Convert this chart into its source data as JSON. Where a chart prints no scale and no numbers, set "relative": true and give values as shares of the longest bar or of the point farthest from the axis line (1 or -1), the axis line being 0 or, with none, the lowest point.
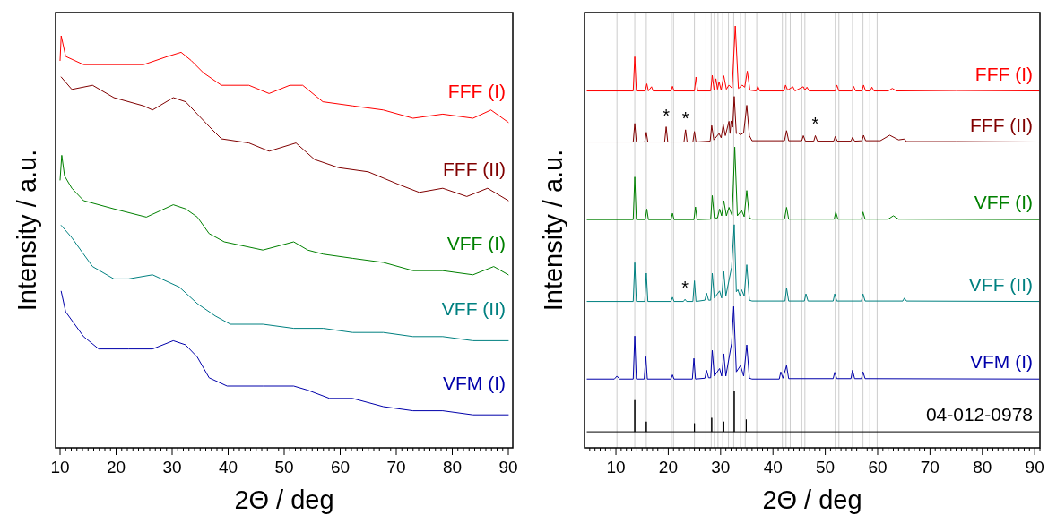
{
  "chart_data": [
    {
      "type": "line",
      "relative": true,
      "xlabel": "2Θ / deg",
      "ylabel": "Intensity / a.u.",
      "xlim": [
        9.2,
        90.8
      ],
      "xticks": [
        10,
        {
          "value": 11,
          "label": null
        },
        {
          "value": 12,
          "label": null
        },
        {
          "value": 13,
          "label": null
        },
        {
          "value": 14,
          "label": null
        },
        {
          "value": 15,
          "label": null
        },
        {
          "value": 16,
          "label": null
        },
        {
          "value": 17,
          "label": null
        },
        {
          "value": 18,
          "label": null
        },
        {
          "value": 19,
          "label": null
        },
        20,
        {
          "value": 21,
          "label": null
        },
        {
          "value": 22,
          "label": null
        },
        {
          "value": 23,
          "label": null
        },
        {
          "value": 24,
          "label": null
        },
        {
          "value": 25,
          "label": null
        },
        {
          "value": 26,
          "label": null
        },
        {
          "value": 27,
          "label": null
        },
        {
          "value": 28,
          "label": null
        },
        {
          "value": 29,
          "label": null
        },
        30,
        {
          "value": 31,
          "label": null
        },
        {
          "value": 32,
          "label": null
        },
        {
          "value": 33,
          "label": null
        },
        {
          "value": 34,
          "label": null
        },
        {
          "value": 35,
          "label": null
        },
        {
          "value": 36,
          "label": null
        },
        {
          "value": 37,
          "label": null
        },
        {
          "value": 38,
          "label": null
        },
        {
          "value": 39,
          "label": null
        },
        40,
        {
          "value": 41,
          "label": null
        },
        {
          "value": 42,
          "label": null
        },
        {
          "value": 43,
          "label": null
        },
        {
          "value": 44,
          "label": null
        },
        {
          "value": 45,
          "label": null
        },
        {
          "value": 46,
          "label": null
        },
        {
          "value": 47,
          "label": null
        },
        {
          "value": 48,
          "label": null
        },
        {
          "value": 49,
          "label": null
        },
        50,
        {
          "value": 51,
          "label": null
        },
        {
          "value": 52,
          "label": null
        },
        {
          "value": 53,
          "label": null
        },
        {
          "value": 54,
          "label": null
        },
        {
          "value": 55,
          "label": null
        },
        {
          "value": 56,
          "label": null
        },
        {
          "value": 57,
          "label": null
        },
        {
          "value": 58,
          "label": null
        },
        {
          "value": 59,
          "label": null
        },
        60,
        {
          "value": 61,
          "label": null
        },
        {
          "value": 62,
          "label": null
        },
        {
          "value": 63,
          "label": null
        },
        {
          "value": 64,
          "label": null
        },
        {
          "value": 65,
          "label": null
        },
        {
          "value": 66,
          "label": null
        },
        {
          "value": 67,
          "label": null
        },
        {
          "value": 68,
          "label": null
        },
        {
          "value": 69,
          "label": null
        },
        70,
        {
          "value": 71,
          "label": null
        },
        {
          "value": 72,
          "label": null
        },
        {
          "value": 73,
          "label": null
        },
        {
          "value": 74,
          "label": null
        },
        {
          "value": 75,
          "label": null
        },
        {
          "value": 76,
          "label": null
        },
        {
          "value": 77,
          "label": null
        },
        {
          "value": 78,
          "label": null
        },
        {
          "value": 79,
          "label": null
        },
        80,
        {
          "value": 81,
          "label": null
        },
        {
          "value": 82,
          "label": null
        },
        {
          "value": 83,
          "label": null
        },
        {
          "value": 84,
          "label": null
        },
        {
          "value": 85,
          "label": null
        },
        {
          "value": 86,
          "label": null
        },
        {
          "value": 87,
          "label": null
        },
        {
          "value": 88,
          "label": null
        },
        {
          "value": 89,
          "label": null
        },
        90
      ],
      "series": [
        {
          "name": "FFF (I)",
          "color": "#ff0000",
          "x": [
            10.0,
            10.2,
            11.0,
            14.2,
            19.6,
            24.9,
            29.2,
            31.6,
            33.4,
            35.6,
            38.8,
            43.7,
            47.3,
            51.0,
            53.3,
            56.9,
            62.2,
            67.7,
            73.0,
            78.3,
            83.7,
            86.9,
            90.0
          ],
          "values": [
            0.94,
            1.0,
            0.95,
            0.93,
            0.93,
            0.93,
            0.95,
            0.96,
            0.94,
            0.91,
            0.88,
            0.88,
            0.86,
            0.88,
            0.88,
            0.84,
            0.83,
            0.82,
            0.8,
            0.81,
            0.8,
            0.82,
            0.79
          ]
        },
        {
          "name": "FFF (II)",
          "color": "#800000",
          "x": [
            10.2,
            12.1,
            15.8,
            19.6,
            24.9,
            26.5,
            30.2,
            32.4,
            34.5,
            36.6,
            38.8,
            43.7,
            47.3,
            52.1,
            55.4,
            59.7,
            65.0,
            70.3,
            74.1,
            78.3,
            82.6,
            86.3,
            90.0
          ],
          "values": [
            0.9,
            0.87,
            0.88,
            0.85,
            0.83,
            0.82,
            0.85,
            0.84,
            0.81,
            0.78,
            0.75,
            0.74,
            0.72,
            0.74,
            0.7,
            0.68,
            0.67,
            0.64,
            0.62,
            0.63,
            0.61,
            0.63,
            0.6
          ]
        },
        {
          "name": "VFF (I)",
          "color": "#008000",
          "x": [
            10.0,
            10.3,
            10.8,
            12.1,
            14.2,
            19.6,
            25.4,
            30.2,
            32.4,
            34.5,
            36.6,
            39.3,
            46.2,
            51.7,
            54.2,
            57.0,
            62.2,
            67.7,
            73.0,
            78.3,
            83.7,
            87.4,
            90.0
          ],
          "values": [
            0.65,
            0.71,
            0.66,
            0.63,
            0.6,
            0.58,
            0.56,
            0.59,
            0.58,
            0.56,
            0.52,
            0.5,
            0.48,
            0.5,
            0.48,
            0.47,
            0.46,
            0.45,
            0.43,
            0.43,
            0.42,
            0.44,
            0.42
          ]
        },
        {
          "name": "VFF (II)",
          "color": "#008080",
          "x": [
            10.2,
            12.1,
            14.2,
            15.8,
            19.6,
            22.2,
            26.5,
            28.1,
            31.3,
            34.5,
            37.7,
            40.4,
            46.2,
            51.7,
            57.0,
            62.2,
            67.7,
            73.0,
            78.3,
            83.7,
            90.0
          ],
          "values": [
            0.54,
            0.51,
            0.47,
            0.44,
            0.41,
            0.41,
            0.42,
            0.41,
            0.39,
            0.35,
            0.32,
            0.3,
            0.3,
            0.29,
            0.29,
            0.28,
            0.28,
            0.27,
            0.27,
            0.26,
            0.26
          ]
        },
        {
          "name": "VFM (I)",
          "color": "#0000aa",
          "x": [
            10.2,
            11.0,
            12.6,
            14.2,
            16.9,
            22.2,
            26.5,
            30.2,
            32.4,
            34.5,
            36.6,
            39.8,
            46.2,
            51.7,
            54.2,
            58.1,
            62.2,
            67.7,
            73.0,
            78.3,
            83.7,
            90.0
          ],
          "values": [
            0.38,
            0.33,
            0.3,
            0.27,
            0.24,
            0.24,
            0.24,
            0.26,
            0.25,
            0.22,
            0.17,
            0.15,
            0.15,
            0.15,
            0.14,
            0.12,
            0.12,
            0.1,
            0.09,
            0.09,
            0.08,
            0.08
          ]
        }
      ]
    },
    {
      "type": "line",
      "relative": true,
      "xlabel": "2Θ / deg",
      "ylabel": "Intensity / a.u.",
      "xlim": [
        4,
        91
      ],
      "xticks": [
        {
          "value": 5,
          "label": null
        },
        {
          "value": 6,
          "label": null
        },
        {
          "value": 7,
          "label": null
        },
        {
          "value": 8,
          "label": null
        },
        {
          "value": 9,
          "label": null
        },
        10,
        {
          "value": 11,
          "label": null
        },
        {
          "value": 12,
          "label": null
        },
        {
          "value": 13,
          "label": null
        },
        {
          "value": 14,
          "label": null
        },
        {
          "value": 15,
          "label": null
        },
        {
          "value": 16,
          "label": null
        },
        {
          "value": 17,
          "label": null
        },
        {
          "value": 18,
          "label": null
        },
        {
          "value": 19,
          "label": null
        },
        20,
        {
          "value": 21,
          "label": null
        },
        {
          "value": 22,
          "label": null
        },
        {
          "value": 23,
          "label": null
        },
        {
          "value": 24,
          "label": null
        },
        {
          "value": 25,
          "label": null
        },
        {
          "value": 26,
          "label": null
        },
        {
          "value": 27,
          "label": null
        },
        {
          "value": 28,
          "label": null
        },
        {
          "value": 29,
          "label": null
        },
        30,
        {
          "value": 31,
          "label": null
        },
        {
          "value": 32,
          "label": null
        },
        {
          "value": 33,
          "label": null
        },
        {
          "value": 34,
          "label": null
        },
        {
          "value": 35,
          "label": null
        },
        {
          "value": 36,
          "label": null
        },
        {
          "value": 37,
          "label": null
        },
        {
          "value": 38,
          "label": null
        },
        {
          "value": 39,
          "label": null
        },
        40,
        {
          "value": 41,
          "label": null
        },
        {
          "value": 42,
          "label": null
        },
        {
          "value": 43,
          "label": null
        },
        {
          "value": 44,
          "label": null
        },
        {
          "value": 45,
          "label": null
        },
        {
          "value": 46,
          "label": null
        },
        {
          "value": 47,
          "label": null
        },
        {
          "value": 48,
          "label": null
        },
        {
          "value": 49,
          "label": null
        },
        50,
        {
          "value": 51,
          "label": null
        },
        {
          "value": 52,
          "label": null
        },
        {
          "value": 53,
          "label": null
        },
        {
          "value": 54,
          "label": null
        },
        {
          "value": 55,
          "label": null
        },
        {
          "value": 56,
          "label": null
        },
        {
          "value": 57,
          "label": null
        },
        {
          "value": 58,
          "label": null
        },
        {
          "value": 59,
          "label": null
        },
        60,
        {
          "value": 61,
          "label": null
        },
        {
          "value": 62,
          "label": null
        },
        {
          "value": 63,
          "label": null
        },
        {
          "value": 64,
          "label": null
        },
        {
          "value": 65,
          "label": null
        },
        {
          "value": 66,
          "label": null
        },
        {
          "value": 67,
          "label": null
        },
        {
          "value": 68,
          "label": null
        },
        {
          "value": 69,
          "label": null
        },
        70,
        {
          "value": 71,
          "label": null
        },
        {
          "value": 72,
          "label": null
        },
        {
          "value": 73,
          "label": null
        },
        {
          "value": 74,
          "label": null
        },
        {
          "value": 75,
          "label": null
        },
        {
          "value": 76,
          "label": null
        },
        {
          "value": 77,
          "label": null
        },
        {
          "value": 78,
          "label": null
        },
        {
          "value": 79,
          "label": null
        },
        80,
        {
          "value": 81,
          "label": null
        },
        {
          "value": 82,
          "label": null
        },
        {
          "value": 83,
          "label": null
        },
        {
          "value": 84,
          "label": null
        },
        {
          "value": 85,
          "label": null
        },
        {
          "value": 86,
          "label": null
        },
        {
          "value": 87,
          "label": null
        },
        {
          "value": 88,
          "label": null
        },
        {
          "value": 89,
          "label": null
        },
        90,
        {
          "value": 91,
          "label": null
        }
      ],
      "ref_lines": [
        {
          "axis": "x",
          "value": 10.2,
          "color": "#cccccc"
        },
        {
          "axis": "x",
          "value": 13.6,
          "color": "#cccccc"
        },
        {
          "axis": "x",
          "value": 15.8,
          "color": "#cccccc"
        },
        {
          "axis": "x",
          "value": 20.6,
          "color": "#cccccc"
        },
        {
          "axis": "x",
          "value": 21.0,
          "color": "#cccccc"
        },
        {
          "axis": "x",
          "value": 25.0,
          "color": "#cccccc"
        },
        {
          "axis": "x",
          "value": 27.2,
          "color": "#cccccc"
        },
        {
          "axis": "x",
          "value": 28.2,
          "color": "#cccccc"
        },
        {
          "axis": "x",
          "value": 28.8,
          "color": "#cccccc"
        },
        {
          "axis": "x",
          "value": 29.5,
          "color": "#cccccc"
        },
        {
          "axis": "x",
          "value": 30.4,
          "color": "#cccccc"
        },
        {
          "axis": "x",
          "value": 31.5,
          "color": "#cccccc"
        },
        {
          "axis": "x",
          "value": 32.5,
          "color": "#cccccc"
        },
        {
          "axis": "x",
          "value": 33.8,
          "color": "#cccccc"
        },
        {
          "axis": "x",
          "value": 34.7,
          "color": "#cccccc"
        },
        {
          "axis": "x",
          "value": 36.9,
          "color": "#cccccc"
        },
        {
          "axis": "x",
          "value": 41.8,
          "color": "#cccccc"
        },
        {
          "axis": "x",
          "value": 42.5,
          "color": "#cccccc"
        },
        {
          "axis": "x",
          "value": 43.3,
          "color": "#cccccc"
        },
        {
          "axis": "x",
          "value": 45.5,
          "color": "#cccccc"
        },
        {
          "axis": "x",
          "value": 46.1,
          "color": "#cccccc"
        },
        {
          "axis": "x",
          "value": 51.9,
          "color": "#cccccc"
        },
        {
          "axis": "x",
          "value": 52.6,
          "color": "#cccccc"
        },
        {
          "axis": "x",
          "value": 55.2,
          "color": "#cccccc"
        },
        {
          "axis": "x",
          "value": 57.2,
          "color": "#cccccc"
        },
        {
          "axis": "x",
          "value": 58.5,
          "color": "#cccccc"
        },
        {
          "axis": "x",
          "value": 59.9,
          "color": "#cccccc"
        }
      ],
      "annotations": [
        {
          "text": "*",
          "x": 19.6,
          "y": 0.761
        },
        {
          "text": "*",
          "x": 23.3,
          "y": 0.754
        },
        {
          "text": "*",
          "x": 48.1,
          "y": 0.74
        },
        {
          "text": "*",
          "x": 23.2,
          "y": 0.352
        }
      ],
      "series": [
        {
          "name": "FFF (I)",
          "color": "#ff0000",
          "x": [
            4.5,
            13.3,
            13.6,
            13.9,
            15.6,
            15.9,
            16.2,
            16.8,
            17.1,
            20.5,
            20.8,
            21.1,
            25.0,
            25.3,
            25.6,
            28.1,
            28.4,
            28.75,
            29.1,
            29.4,
            29.7,
            30.1,
            30.6,
            31.1,
            31.6,
            32.2,
            32.8,
            33.4,
            33.8,
            34.1,
            34.6,
            35.1,
            35.6,
            36.8,
            37.1,
            37.5,
            42.1,
            42.4,
            42.8,
            43.8,
            44.2,
            45.8,
            46.1,
            46.5,
            46.9,
            51.9,
            52.2,
            52.6,
            55.1,
            55.4,
            55.8,
            57.0,
            57.3,
            57.7,
            58.6,
            58.9,
            59.3,
            62.0,
            62.8,
            63.6,
            75.0,
            90.8
          ],
          "values": [
            0.846,
            0.846,
            0.927,
            0.846,
            0.846,
            0.863,
            0.846,
            0.856,
            0.846,
            0.846,
            0.857,
            0.846,
            0.846,
            0.879,
            0.846,
            0.846,
            0.883,
            0.848,
            0.875,
            0.85,
            0.868,
            0.848,
            0.882,
            0.85,
            0.86,
            0.852,
            1.0,
            0.852,
            0.856,
            0.86,
            0.855,
            0.893,
            0.848,
            0.846,
            0.857,
            0.846,
            0.846,
            0.86,
            0.848,
            0.856,
            0.846,
            0.856,
            0.848,
            0.855,
            0.846,
            0.846,
            0.86,
            0.846,
            0.846,
            0.857,
            0.846,
            0.846,
            0.86,
            0.846,
            0.846,
            0.855,
            0.846,
            0.846,
            0.852,
            0.846,
            0.847,
            0.846
          ]
        },
        {
          "name": "FFF (II)",
          "color": "#800000",
          "x": [
            4.5,
            13.3,
            13.6,
            13.9,
            15.5,
            15.8,
            16.1,
            19.3,
            19.6,
            19.9,
            23.0,
            23.3,
            23.6,
            24.7,
            25.0,
            25.3,
            28.0,
            28.3,
            28.7,
            29.7,
            30.1,
            30.5,
            30.9,
            31.6,
            31.8,
            32.0,
            32.3,
            32.6,
            33.0,
            33.3,
            33.8,
            34.4,
            35.0,
            35.5,
            36.0,
            42.2,
            42.6,
            43.0,
            45.5,
            45.8,
            46.2,
            47.8,
            48.1,
            48.5,
            51.6,
            51.9,
            52.3,
            54.9,
            55.2,
            55.6,
            57.0,
            57.3,
            57.7,
            60.5,
            62.3,
            64.0,
            65.1,
            65.5,
            75.0,
            90.8
          ],
          "values": [
            0.725,
            0.725,
            0.769,
            0.725,
            0.725,
            0.748,
            0.725,
            0.725,
            0.761,
            0.725,
            0.725,
            0.754,
            0.725,
            0.725,
            0.75,
            0.725,
            0.727,
            0.764,
            0.73,
            0.745,
            0.735,
            0.766,
            0.74,
            0.774,
            0.745,
            0.775,
            0.76,
            0.833,
            0.745,
            0.747,
            0.742,
            0.747,
            0.812,
            0.74,
            0.728,
            0.728,
            0.752,
            0.728,
            0.728,
            0.74,
            0.727,
            0.727,
            0.74,
            0.727,
            0.727,
            0.738,
            0.727,
            0.727,
            0.736,
            0.727,
            0.728,
            0.741,
            0.728,
            0.728,
            0.741,
            0.73,
            0.732,
            0.726,
            0.726,
            0.725
          ]
        },
        {
          "name": "VFF (I)",
          "color": "#008000",
          "x": [
            4.5,
            13.3,
            13.6,
            13.9,
            15.6,
            15.9,
            16.2,
            20.5,
            20.8,
            21.1,
            24.9,
            25.2,
            25.5,
            28.1,
            28.4,
            28.8,
            29.4,
            29.8,
            30.2,
            30.6,
            31.1,
            31.6,
            32.2,
            32.7,
            33.2,
            34.0,
            34.5,
            35.0,
            35.5,
            36.0,
            42.2,
            42.6,
            43.0,
            51.7,
            52.0,
            52.4,
            56.9,
            57.2,
            57.6,
            62.0,
            63.0,
            64.0,
            90.8
          ],
          "values": [
            0.541,
            0.541,
            0.642,
            0.541,
            0.541,
            0.566,
            0.541,
            0.541,
            0.556,
            0.541,
            0.541,
            0.571,
            0.541,
            0.542,
            0.598,
            0.545,
            0.545,
            0.566,
            0.55,
            0.586,
            0.55,
            0.57,
            0.55,
            0.713,
            0.55,
            0.563,
            0.548,
            0.61,
            0.545,
            0.542,
            0.542,
            0.57,
            0.542,
            0.542,
            0.559,
            0.542,
            0.542,
            0.559,
            0.542,
            0.542,
            0.55,
            0.542,
            0.541
          ]
        },
        {
          "name": "VFF (II)",
          "color": "#008080",
          "x": [
            4.5,
            13.3,
            13.6,
            13.9,
            15.5,
            15.8,
            16.1,
            20.5,
            20.8,
            21.1,
            22.9,
            23.2,
            23.5,
            24.7,
            25.0,
            25.3,
            27.0,
            27.3,
            27.7,
            28.1,
            28.4,
            28.8,
            29.8,
            30.2,
            30.6,
            31.0,
            32.1,
            32.6,
            33.0,
            33.3,
            33.7,
            34.0,
            34.5,
            35.0,
            35.5,
            36.0,
            42.3,
            42.6,
            43.0,
            46.0,
            46.3,
            46.7,
            51.5,
            51.8,
            52.2,
            56.9,
            57.2,
            57.6,
            64.8,
            65.1,
            65.5,
            90.8
          ],
          "values": [
            0.347,
            0.347,
            0.439,
            0.347,
            0.347,
            0.414,
            0.347,
            0.347,
            0.357,
            0.347,
            0.347,
            0.352,
            0.347,
            0.347,
            0.396,
            0.347,
            0.35,
            0.367,
            0.35,
            0.35,
            0.414,
            0.355,
            0.372,
            0.355,
            0.418,
            0.36,
            0.428,
            0.529,
            0.37,
            0.375,
            0.36,
            0.375,
            0.36,
            0.434,
            0.35,
            0.348,
            0.348,
            0.379,
            0.348,
            0.348,
            0.365,
            0.348,
            0.348,
            0.365,
            0.348,
            0.348,
            0.365,
            0.348,
            0.348,
            0.355,
            0.348,
            0.347
          ]
        },
        {
          "name": "VFM (I)",
          "color": "#0000aa",
          "x": [
            4.5,
            9.7,
            10.2,
            10.7,
            13.3,
            13.6,
            13.9,
            15.4,
            15.7,
            16.0,
            20.5,
            20.8,
            21.1,
            24.6,
            24.9,
            25.2,
            27.0,
            27.3,
            27.7,
            28.1,
            28.4,
            28.8,
            29.8,
            30.2,
            30.6,
            31.0,
            32.1,
            32.5,
            33.0,
            33.8,
            34.4,
            35.0,
            35.5,
            36.0,
            41.2,
            41.5,
            41.9,
            42.6,
            43.0,
            51.5,
            51.8,
            52.2,
            54.9,
            55.2,
            55.6,
            56.9,
            57.2,
            57.6,
            90.8
          ],
          "values": [
            0.163,
            0.163,
            0.17,
            0.163,
            0.163,
            0.265,
            0.163,
            0.163,
            0.216,
            0.163,
            0.163,
            0.173,
            0.163,
            0.163,
            0.212,
            0.163,
            0.165,
            0.184,
            0.166,
            0.166,
            0.231,
            0.17,
            0.188,
            0.17,
            0.223,
            0.17,
            0.248,
            0.335,
            0.18,
            0.195,
            0.17,
            0.244,
            0.165,
            0.163,
            0.163,
            0.18,
            0.165,
            0.195,
            0.164,
            0.164,
            0.179,
            0.164,
            0.164,
            0.184,
            0.164,
            0.164,
            0.18,
            0.164,
            0.163
          ]
        },
        {
          "name": "04-012-0978",
          "color": "#000000",
          "x": [
            4.5,
            13.6,
            13.6,
            13.6,
            15.8,
            15.8,
            15.8,
            25.0,
            25.0,
            25.0,
            28.3,
            28.3,
            28.3,
            30.6,
            30.6,
            30.6,
            32.6,
            32.6,
            32.6,
            34.9,
            34.9,
            34.9,
            90.8
          ],
          "values": [
            0.038,
            0.038,
            0.113,
            0.038,
            0.038,
            0.062,
            0.038,
            0.038,
            0.058,
            0.038,
            0.038,
            0.071,
            0.038,
            0.038,
            0.062,
            0.038,
            0.038,
            0.134,
            0.038,
            0.038,
            0.067,
            0.038,
            0.038
          ]
        }
      ]
    }
  ]
}
